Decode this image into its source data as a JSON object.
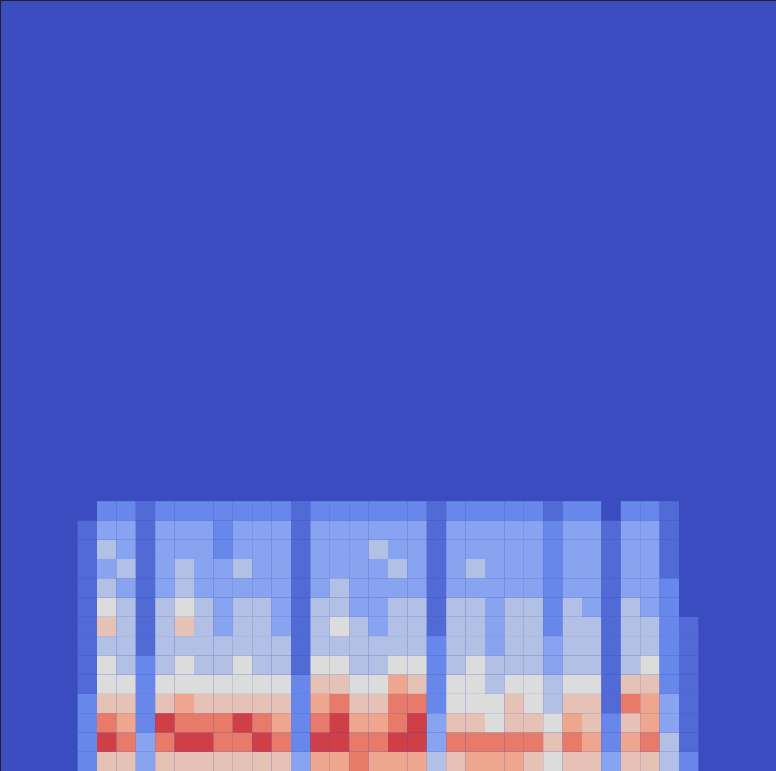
{
  "chart_data": {
    "type": "heatmap",
    "x": [
      4,
      5,
      6,
      7,
      8,
      9,
      10,
      11,
      12,
      13,
      14,
      15,
      16,
      17,
      18,
      19,
      20,
      21,
      22,
      23,
      24,
      25,
      26,
      27,
      28,
      29,
      30,
      31,
      32,
      33,
      34,
      35
    ],
    "y": [
      0,
      1,
      2,
      3,
      4,
      5,
      6,
      7,
      8,
      9,
      10,
      11,
      12,
      13
    ],
    "cells": [
      [
        2,
        6,
        6,
        3,
        6,
        6,
        6,
        6,
        6,
        6,
        6,
        3,
        7,
        7,
        8,
        7,
        7,
        7,
        4,
        6,
        7,
        7,
        7,
        6,
        5,
        6,
        6,
        3,
        6,
        6,
        4,
        2
      ],
      [
        2,
        9,
        8,
        3,
        8,
        9,
        9,
        8,
        8,
        9,
        8,
        2,
        9,
        9,
        8,
        8,
        9,
        9,
        3,
        8,
        8,
        8,
        8,
        8,
        6,
        8,
        7,
        2,
        7,
        8,
        4,
        1
      ],
      [
        2,
        8,
        7,
        2,
        9,
        8,
        8,
        8,
        9,
        8,
        7,
        2,
        8,
        9,
        7,
        7,
        8,
        9,
        3,
        6,
        6,
        5,
        6,
        6,
        5,
        7,
        6,
        2,
        6,
        7,
        3,
        1
      ],
      [
        2,
        6,
        6,
        2,
        6,
        7,
        6,
        6,
        6,
        6,
        6,
        2,
        7,
        8,
        6,
        6,
        8,
        8,
        2,
        5,
        5,
        5,
        6,
        5,
        4,
        6,
        6,
        1,
        8,
        7,
        3,
        1
      ],
      [
        1,
        5,
        5,
        2,
        5,
        5,
        5,
        5,
        5,
        5,
        5,
        2,
        6,
        6,
        5,
        5,
        7,
        6,
        2,
        5,
        5,
        4,
        5,
        5,
        4,
        5,
        5,
        1,
        6,
        6,
        2,
        1
      ],
      [
        1,
        5,
        4,
        2,
        4,
        5,
        4,
        4,
        5,
        4,
        4,
        1,
        5,
        5,
        4,
        4,
        5,
        5,
        2,
        4,
        5,
        4,
        4,
        4,
        3,
        4,
        4,
        1,
        4,
        5,
        2,
        1
      ],
      [
        1,
        4,
        4,
        1,
        4,
        4,
        4,
        4,
        4,
        4,
        4,
        1,
        4,
        4,
        4,
        4,
        4,
        4,
        2,
        4,
        4,
        3,
        4,
        4,
        3,
        4,
        4,
        1,
        4,
        4,
        2,
        1
      ],
      [
        1,
        6,
        4,
        1,
        4,
        6,
        4,
        3,
        4,
        4,
        3,
        1,
        4,
        5,
        4,
        3,
        4,
        4,
        1,
        4,
        4,
        3,
        4,
        4,
        2,
        4,
        4,
        1,
        4,
        4,
        2,
        1
      ],
      [
        1,
        5,
        4,
        1,
        4,
        5,
        4,
        3,
        4,
        4,
        3,
        1,
        4,
        4,
        3,
        3,
        4,
        4,
        1,
        4,
        4,
        3,
        4,
        4,
        2,
        4,
        3,
        1,
        4,
        3,
        2,
        0
      ],
      [
        1,
        4,
        3,
        1,
        3,
        4,
        3,
        3,
        3,
        3,
        3,
        1,
        3,
        4,
        3,
        3,
        3,
        3,
        1,
        3,
        3,
        3,
        3,
        3,
        2,
        3,
        3,
        1,
        3,
        3,
        2,
        0
      ],
      [
        1,
        3,
        4,
        1,
        3,
        4,
        3,
        3,
        4,
        3,
        3,
        1,
        3,
        3,
        3,
        3,
        4,
        3,
        1,
        3,
        4,
        3,
        3,
        3,
        2,
        3,
        3,
        1,
        3,
        3,
        1,
        0
      ],
      [
        1,
        4,
        3,
        1,
        3,
        3,
        3,
        2,
        3,
        3,
        3,
        1,
        3,
        3,
        3,
        4,
        3,
        3,
        1,
        3,
        3,
        3,
        3,
        3,
        2,
        3,
        3,
        1,
        3,
        3,
        1,
        0
      ],
      [
        1,
        3,
        3,
        1,
        3,
        3,
        3,
        2,
        3,
        3,
        3,
        1,
        3,
        3,
        3,
        3,
        3,
        3,
        1,
        3,
        3,
        3,
        3,
        3,
        2,
        3,
        3,
        1,
        3,
        3,
        1,
        0
      ],
      [
        0,
        2,
        2,
        1,
        2,
        2,
        2,
        2,
        2,
        2,
        2,
        1,
        2,
        2,
        2,
        2,
        2,
        2,
        1,
        2,
        2,
        2,
        2,
        2,
        1,
        2,
        2,
        0,
        2,
        2,
        1,
        0
      ]
    ],
    "xlim": [
      0,
      40
    ],
    "ylim": [
      0,
      40
    ],
    "color_range": [
      0,
      10
    ],
    "tick_labels": false
  }
}
